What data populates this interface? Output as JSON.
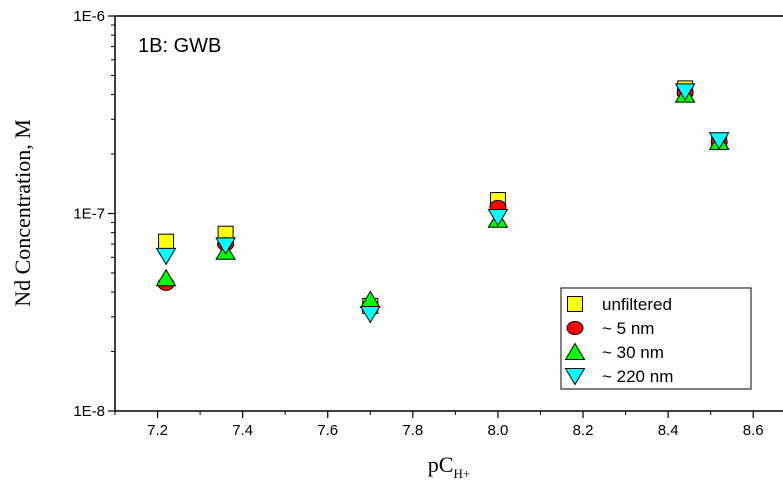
{
  "chart_data": {
    "type": "scatter",
    "title": "",
    "annotation": "1B:  GWB",
    "xlabel": {
      "main": "pC",
      "sub": "H+"
    },
    "ylabel": "Nd Concentration, M",
    "xlim": [
      7.1,
      8.67
    ],
    "ylim": [
      1e-08,
      1e-06
    ],
    "yscale": "log",
    "x_ticks": [
      7.2,
      7.4,
      7.6,
      7.8,
      8.0,
      8.2,
      8.4,
      8.6
    ],
    "x_tick_labels": [
      "7.2",
      "7.4",
      "7.6",
      "7.8",
      "8.0",
      "8.2",
      "8.4",
      "8.6"
    ],
    "y_ticks": [
      1e-08,
      1e-07,
      1e-06
    ],
    "y_tick_labels": [
      "1E-8",
      "1E-7",
      "1E-6"
    ],
    "grid": false,
    "legend_position": "bottom-right",
    "series": [
      {
        "name": "unfiltered",
        "marker": "square",
        "color": "#ffff00",
        "x": [
          7.22,
          7.36,
          7.7,
          8.0,
          8.44,
          8.52
        ],
        "y": [
          7.2e-08,
          7.9e-08,
          3.4e-08,
          1.17e-07,
          4.3e-07,
          2.3e-07
        ]
      },
      {
        "name": "~ 5 nm",
        "marker": "circle",
        "color": "#ff0000",
        "x": [
          7.22,
          7.36,
          7.7,
          8.0,
          8.44,
          8.52
        ],
        "y": [
          4.4e-08,
          7e-08,
          3.4e-08,
          1.08e-07,
          4.1e-07,
          2.3e-07
        ]
      },
      {
        "name": "~ 30 nm",
        "marker": "triangle-up",
        "color": "#00ff00",
        "x": [
          7.22,
          7.36,
          7.7,
          8.0,
          8.44,
          8.52
        ],
        "y": [
          4.7e-08,
          6.4e-08,
          3.65e-08,
          9.3e-08,
          4e-07,
          2.3e-07
        ]
      },
      {
        "name": "~ 220 nm",
        "marker": "triangle-down",
        "color": "#00ffff",
        "x": [
          7.22,
          7.36,
          7.7,
          8.0,
          8.44,
          8.52
        ],
        "y": [
          6.1e-08,
          6.9e-08,
          3.1e-08,
          9.6e-08,
          4.15e-07,
          2.35e-07
        ]
      }
    ]
  }
}
